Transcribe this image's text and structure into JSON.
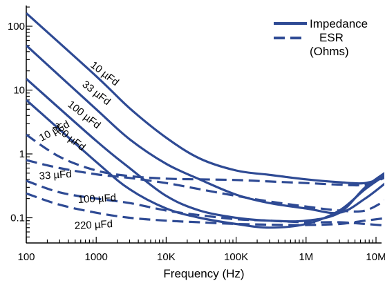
{
  "chart_data": {
    "type": "line",
    "xlabel": "Frequency (Hz)",
    "ylabel": "",
    "x_scale": "log",
    "y_scale": "log",
    "xlim": [
      100,
      15000000
    ],
    "ylim": [
      0.05,
      250
    ],
    "grid": false,
    "legend_position": "top-right",
    "x_ticks": [
      {
        "value": 100,
        "label": "100"
      },
      {
        "value": 1000,
        "label": "1000"
      },
      {
        "value": 10000,
        "label": "10K"
      },
      {
        "value": 100000,
        "label": "100K"
      },
      {
        "value": 1000000,
        "label": "1M"
      },
      {
        "value": 10000000,
        "label": "10M"
      }
    ],
    "y_ticks": [
      {
        "value": 0.1,
        "label": "0.1"
      },
      {
        "value": 1,
        "label": "1"
      },
      {
        "value": 10,
        "label": "10"
      },
      {
        "value": 100,
        "label": "100"
      }
    ],
    "legend": [
      {
        "label": "Impedance",
        "style": "solid"
      },
      {
        "label": "ESR\n(Ohms)",
        "style": "dashed"
      }
    ],
    "line_color": "#2e4a94",
    "series": [
      {
        "kind": "impedance",
        "capacitance_label": "10 µFd",
        "points": [
          [
            100,
            160
          ],
          [
            1000,
            16.5
          ],
          [
            3000,
            5.2
          ],
          [
            10000,
            1.8
          ],
          [
            30000,
            0.85
          ],
          [
            100000,
            0.55
          ],
          [
            300000,
            0.47
          ],
          [
            1000000,
            0.4
          ],
          [
            3000000,
            0.36
          ],
          [
            7000000,
            0.35
          ],
          [
            15000000,
            0.45
          ]
        ]
      },
      {
        "kind": "impedance",
        "capacitance_label": "33 µFd",
        "points": [
          [
            100,
            50
          ],
          [
            1000,
            5
          ],
          [
            3000,
            1.7
          ],
          [
            10000,
            0.7
          ],
          [
            30000,
            0.4
          ],
          [
            100000,
            0.23
          ],
          [
            300000,
            0.17
          ],
          [
            1000000,
            0.14
          ],
          [
            3000000,
            0.12
          ],
          [
            7000000,
            0.2
          ],
          [
            15000000,
            0.38
          ]
        ]
      },
      {
        "kind": "impedance",
        "capacitance_label": "100 µFd",
        "points": [
          [
            100,
            15
          ],
          [
            1000,
            1.6
          ],
          [
            3000,
            0.6
          ],
          [
            10000,
            0.22
          ],
          [
            30000,
            0.13
          ],
          [
            100000,
            0.1
          ],
          [
            300000,
            0.09
          ],
          [
            1000000,
            0.09
          ],
          [
            3000000,
            0.12
          ],
          [
            7000000,
            0.3
          ],
          [
            15000000,
            0.55
          ]
        ]
      },
      {
        "kind": "impedance",
        "capacitance_label": "220 µFd",
        "points": [
          [
            100,
            7
          ],
          [
            1000,
            0.75
          ],
          [
            3000,
            0.28
          ],
          [
            10000,
            0.14
          ],
          [
            30000,
            0.1
          ],
          [
            100000,
            0.08
          ],
          [
            300000,
            0.07
          ],
          [
            1000000,
            0.08
          ],
          [
            3000000,
            0.13
          ],
          [
            7000000,
            0.28
          ],
          [
            15000000,
            0.5
          ]
        ]
      },
      {
        "kind": "esr",
        "capacitance_label": "10 µFd",
        "points": [
          [
            100,
            2
          ],
          [
            300,
            0.9
          ],
          [
            1000,
            0.55
          ],
          [
            3000,
            0.45
          ],
          [
            10000,
            0.41
          ],
          [
            30000,
            0.4
          ],
          [
            100000,
            0.39
          ],
          [
            300000,
            0.37
          ],
          [
            1000000,
            0.35
          ],
          [
            3000000,
            0.33
          ],
          [
            7000000,
            0.33
          ],
          [
            15000000,
            0.45
          ]
        ]
      },
      {
        "kind": "esr",
        "capacitance_label": "33 µFd",
        "points": [
          [
            100,
            0.8
          ],
          [
            300,
            0.6
          ],
          [
            1000,
            0.48
          ],
          [
            3000,
            0.42
          ],
          [
            10000,
            0.35
          ],
          [
            30000,
            0.28
          ],
          [
            100000,
            0.22
          ],
          [
            300000,
            0.18
          ],
          [
            1000000,
            0.15
          ],
          [
            3000000,
            0.13
          ],
          [
            7000000,
            0.13
          ],
          [
            15000000,
            0.2
          ]
        ]
      },
      {
        "kind": "esr",
        "capacitance_label": "100 µFd",
        "points": [
          [
            100,
            0.38
          ],
          [
            300,
            0.25
          ],
          [
            1000,
            0.2
          ],
          [
            3000,
            0.17
          ],
          [
            10000,
            0.13
          ],
          [
            30000,
            0.11
          ],
          [
            100000,
            0.095
          ],
          [
            300000,
            0.09
          ],
          [
            1000000,
            0.085
          ],
          [
            3000000,
            0.085
          ],
          [
            7000000,
            0.08
          ],
          [
            15000000,
            0.075
          ]
        ]
      },
      {
        "kind": "esr",
        "capacitance_label": "220 µFd",
        "points": [
          [
            100,
            0.24
          ],
          [
            300,
            0.16
          ],
          [
            1000,
            0.12
          ],
          [
            3000,
            0.1
          ],
          [
            10000,
            0.09
          ],
          [
            30000,
            0.085
          ],
          [
            100000,
            0.08
          ],
          [
            300000,
            0.078
          ],
          [
            1000000,
            0.077
          ],
          [
            3000000,
            0.08
          ],
          [
            7000000,
            0.09
          ],
          [
            15000000,
            0.1
          ]
        ]
      }
    ]
  }
}
